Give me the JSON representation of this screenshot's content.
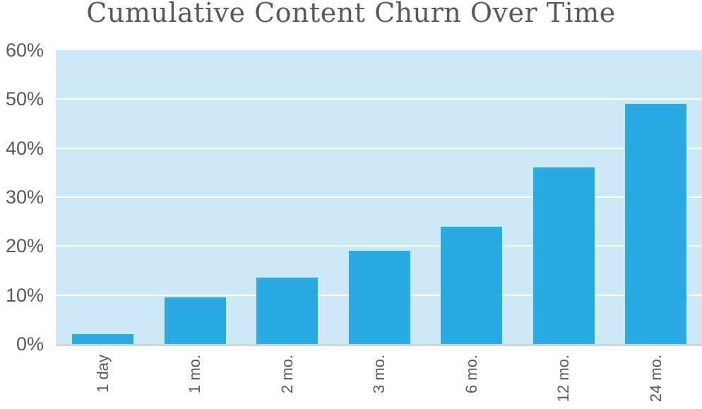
{
  "title": "Cumulative Content Churn Over Time",
  "colors": {
    "bar": "#29abe2",
    "plot_background": "#cde8f5",
    "gridline": "#ffffff",
    "baseline": "#d1d3d4",
    "text": "#58595b"
  },
  "chart_data": {
    "type": "bar",
    "title": "Cumulative Content Churn Over Time",
    "categories": [
      "1 day",
      "1 mo.",
      "2 mo.",
      "3 mo.",
      "6 mo.",
      "12 mo.",
      "24 mo."
    ],
    "values": [
      2,
      9.5,
      13.5,
      19,
      24,
      36,
      49
    ],
    "unit": "%",
    "xlabel": "",
    "ylabel": "",
    "ylim": [
      0,
      60
    ],
    "yticks": [
      0,
      10,
      20,
      30,
      40,
      50,
      60
    ],
    "ytick_labels": [
      "0%",
      "10%",
      "20%",
      "30%",
      "40%",
      "50%",
      "60%"
    ],
    "grid": "horizontal-white-lines",
    "legend": "none",
    "bar_orientation": "vertical",
    "x_label_rotation_deg": -90
  }
}
